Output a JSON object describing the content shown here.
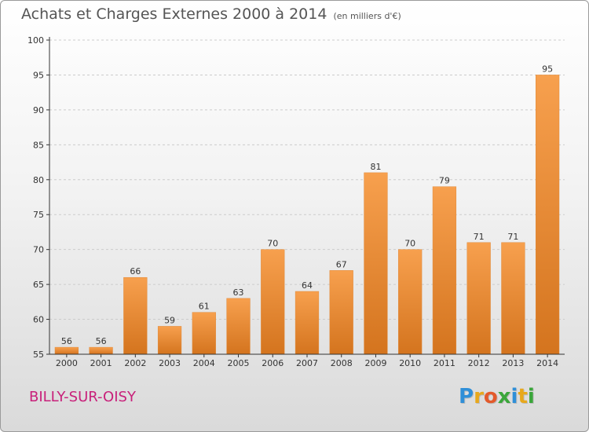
{
  "header": {
    "title": "Achats et Charges Externes 2000 à 2014",
    "subtitle": "(en milliers d'€)"
  },
  "footer": {
    "commune": "BILLY-SUR-OISY",
    "logo_letters": [
      "P",
      "r",
      "o",
      "x",
      "i",
      "t",
      "i"
    ],
    "logo_colors": [
      "#2f8fd8",
      "#e8a81c",
      "#e35a2b",
      "#3aa63a",
      "#2f8fd8",
      "#e8a81c",
      "#3aa63a"
    ]
  },
  "colors": {
    "bar_light": "#f7a04e",
    "bar_dark": "#d4741e",
    "axis": "#333333",
    "grid": "#cccccc"
  },
  "chart_data": {
    "type": "bar",
    "categories": [
      "2000",
      "2001",
      "2002",
      "2003",
      "2004",
      "2005",
      "2006",
      "2007",
      "2008",
      "2009",
      "2010",
      "2011",
      "2012",
      "2013",
      "2014"
    ],
    "values": [
      56,
      56,
      66,
      59,
      61,
      63,
      70,
      64,
      67,
      81,
      70,
      79,
      71,
      71,
      95
    ],
    "data_labels": [
      "56",
      "56",
      "66",
      "59",
      "61",
      "63",
      "70",
      "64",
      "67",
      "81",
      "70",
      "79",
      "71",
      "71",
      "95"
    ],
    "yticks": [
      "55",
      "60",
      "65",
      "70",
      "75",
      "80",
      "85",
      "90",
      "95",
      "100"
    ],
    "ylim": [
      55,
      100
    ],
    "grid": true,
    "legend": "none"
  }
}
